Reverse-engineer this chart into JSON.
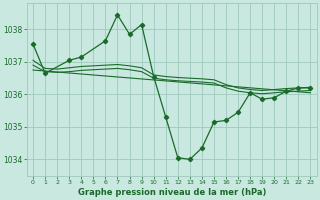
{
  "title": "Graphe pression niveau de la mer (hPa)",
  "background_color": "#c8e8e0",
  "grid_color": "#a0c8be",
  "line_color": "#1a6b2a",
  "xlim": [
    -0.5,
    23.5
  ],
  "ylim": [
    1033.5,
    1038.8
  ],
  "yticks": [
    1034,
    1035,
    1036,
    1037,
    1038
  ],
  "xticks": [
    0,
    1,
    2,
    3,
    4,
    5,
    6,
    7,
    8,
    9,
    10,
    11,
    12,
    13,
    14,
    15,
    16,
    17,
    18,
    19,
    20,
    21,
    22,
    23
  ],
  "series_main": {
    "x": [
      0,
      1,
      3,
      4,
      6,
      7,
      8,
      9,
      10,
      11,
      12,
      13,
      14,
      15,
      16,
      17,
      18,
      19,
      20,
      21,
      22,
      23
    ],
    "y": [
      1037.55,
      1036.65,
      1037.05,
      1037.15,
      1037.65,
      1038.45,
      1037.85,
      1038.15,
      1036.55,
      1035.3,
      1034.05,
      1034.0,
      1034.35,
      1035.15,
      1035.2,
      1035.45,
      1036.05,
      1035.85,
      1035.9,
      1036.1,
      1036.2,
      1036.2
    ]
  },
  "series_smooth": [
    {
      "x": [
        0,
        1,
        2,
        3,
        4,
        5,
        6,
        7,
        8,
        9,
        10,
        11,
        12,
        13,
        14,
        15,
        16,
        17,
        18,
        19,
        20,
        21,
        22,
        23
      ],
      "y": [
        1037.05,
        1036.8,
        1036.78,
        1036.82,
        1036.86,
        1036.88,
        1036.9,
        1036.92,
        1036.88,
        1036.82,
        1036.6,
        1036.55,
        1036.52,
        1036.5,
        1036.48,
        1036.45,
        1036.3,
        1036.2,
        1036.15,
        1036.12,
        1036.15,
        1036.18,
        1036.2,
        1036.22
      ]
    },
    {
      "x": [
        0,
        1,
        2,
        3,
        4,
        5,
        6,
        7,
        8,
        9,
        10,
        11,
        12,
        13,
        14,
        15,
        16,
        17,
        18,
        19,
        20,
        21,
        22,
        23
      ],
      "y": [
        1036.9,
        1036.7,
        1036.68,
        1036.7,
        1036.74,
        1036.76,
        1036.78,
        1036.8,
        1036.76,
        1036.7,
        1036.5,
        1036.45,
        1036.42,
        1036.4,
        1036.38,
        1036.35,
        1036.2,
        1036.1,
        1036.05,
        1036.02,
        1036.05,
        1036.08,
        1036.1,
        1036.12
      ]
    },
    {
      "x": [
        0,
        23
      ],
      "y": [
        1036.75,
        1036.05
      ]
    }
  ]
}
